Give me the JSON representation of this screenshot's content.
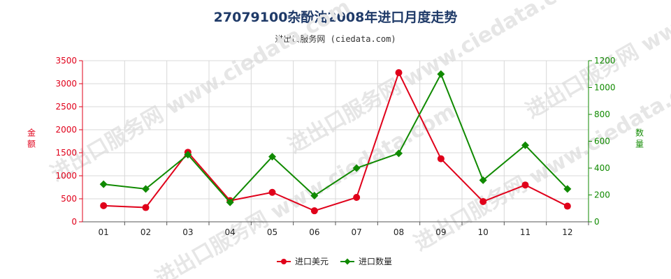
{
  "chart_data": {
    "type": "line",
    "title": "27079100杂酚油2008年进口月度走势",
    "subtitle": "进出口服务网 (ciedata.com)",
    "categories": [
      "01",
      "02",
      "03",
      "04",
      "05",
      "06",
      "07",
      "08",
      "09",
      "10",
      "11",
      "12"
    ],
    "y_left": {
      "label": "金额",
      "range": [
        0,
        3500
      ],
      "ticks": [
        0,
        500,
        1000,
        1500,
        2000,
        2500,
        3000,
        3500
      ],
      "color": "#e0001a"
    },
    "y_right": {
      "label": "数量",
      "range": [
        0,
        1200
      ],
      "ticks": [
        0,
        200,
        400,
        600,
        800,
        1000,
        1200
      ],
      "color": "#108a00"
    },
    "series": [
      {
        "name": "进口美元",
        "axis": "left",
        "color": "#e0001a",
        "marker": "circle",
        "values": [
          350,
          310,
          1510,
          460,
          640,
          240,
          530,
          3240,
          1370,
          440,
          800,
          340
        ]
      },
      {
        "name": "进口数量",
        "axis": "right",
        "color": "#108a00",
        "marker": "diamond",
        "values": [
          280,
          245,
          500,
          145,
          485,
          195,
          400,
          510,
          1100,
          310,
          570,
          245
        ]
      }
    ],
    "grid": true,
    "legend_position": "bottom-center"
  },
  "watermark": "进出口服务网 www.ciedata.com"
}
